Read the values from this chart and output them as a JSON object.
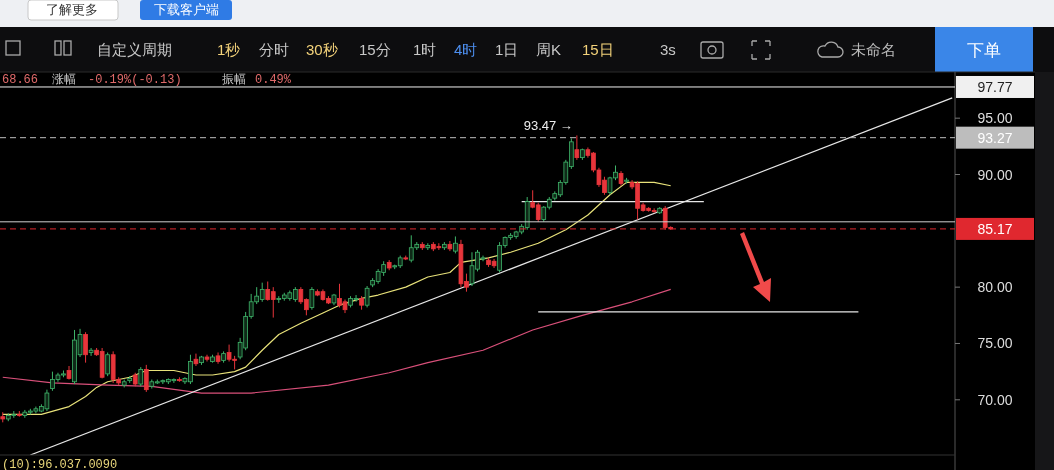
{
  "chart_data": {
    "type": "candlestick",
    "categories": [
      null,
      null,
      null,
      null,
      null,
      null,
      null,
      null,
      null,
      null,
      null,
      null,
      null,
      null,
      null,
      null,
      null,
      null,
      null,
      null,
      null,
      null,
      null,
      null,
      null,
      null,
      null,
      null,
      null,
      null,
      null,
      null,
      null,
      null,
      null,
      null,
      null,
      null,
      null,
      null,
      null,
      null,
      null,
      null,
      null,
      null,
      null,
      null,
      null,
      null,
      null,
      null,
      null,
      null,
      null,
      null,
      null,
      null,
      null,
      null,
      null,
      null,
      null,
      null,
      null,
      null,
      null,
      null,
      null,
      null,
      null,
      null,
      null,
      null,
      null,
      null,
      null,
      null,
      null,
      null,
      null,
      null,
      null,
      null,
      null,
      null,
      null,
      null,
      null,
      null,
      null,
      null,
      null,
      null,
      null,
      null,
      null,
      null,
      null,
      null,
      null,
      null,
      null,
      null,
      null,
      null,
      null,
      null,
      null,
      null,
      null,
      null,
      null,
      null,
      null,
      null,
      null,
      null,
      null,
      null,
      null,
      null,
      null,
      null,
      null,
      null,
      null,
      null,
      null,
      null,
      null,
      null,
      null,
      null,
      null,
      null,
      null,
      null,
      null,
      null,
      null,
      null,
      null,
      null,
      null,
      null,
      null,
      null,
      null,
      null,
      null,
      null,
      null,
      null,
      null,
      null,
      null,
      null,
      null,
      null,
      null,
      null,
      null,
      null,
      null,
      null,
      null,
      null,
      null,
      null,
      null,
      null,
      null
    ],
    "ohlc": [
      [
        68.5,
        68.9,
        68.0,
        68.3
      ],
      [
        68.3,
        68.8,
        68.1,
        68.6
      ],
      [
        68.6,
        69.0,
        68.4,
        68.7
      ],
      [
        68.7,
        69.0,
        68.5,
        68.6
      ],
      [
        68.6,
        69.1,
        68.4,
        68.9
      ],
      [
        68.9,
        69.2,
        68.7,
        69.0
      ],
      [
        69.0,
        69.4,
        68.8,
        69.2
      ],
      [
        69.0,
        69.6,
        68.9,
        69.4
      ],
      [
        69.2,
        70.9,
        69.0,
        70.6
      ],
      [
        71.0,
        72.5,
        70.8,
        71.8
      ],
      [
        71.8,
        72.4,
        71.6,
        72.2
      ],
      [
        72.2,
        72.6,
        72.0,
        72.3
      ],
      [
        72.6,
        73.0,
        71.8,
        71.9
      ],
      [
        71.6,
        76.2,
        71.4,
        75.3
      ],
      [
        74.0,
        76.3,
        73.8,
        75.8
      ],
      [
        75.8,
        76.0,
        73.3,
        74.0
      ],
      [
        74.2,
        74.6,
        73.9,
        74.4
      ],
      [
        74.4,
        74.6,
        73.9,
        74.0
      ],
      [
        74.3,
        74.6,
        71.9,
        72.0
      ],
      [
        72.3,
        74.2,
        72.1,
        74.0
      ],
      [
        74.0,
        74.3,
        71.5,
        71.8
      ],
      [
        71.8,
        72.0,
        71.3,
        71.5
      ],
      [
        71.3,
        71.8,
        71.1,
        71.6
      ],
      [
        71.7,
        72.1,
        71.5,
        71.9
      ],
      [
        72.2,
        72.4,
        71.2,
        71.4
      ],
      [
        71.4,
        72.9,
        71.2,
        72.7
      ],
      [
        72.7,
        73.1,
        70.7,
        70.9
      ],
      [
        71.2,
        71.8,
        71.0,
        71.6
      ],
      [
        71.5,
        71.8,
        71.4,
        71.6
      ],
      [
        71.6,
        71.8,
        71.4,
        71.7
      ],
      [
        71.6,
        71.9,
        71.4,
        71.8
      ],
      [
        71.7,
        71.9,
        71.5,
        71.8
      ],
      [
        71.8,
        72.0,
        71.6,
        71.7
      ],
      [
        71.6,
        72.0,
        71.4,
        71.9
      ],
      [
        71.6,
        74.0,
        71.4,
        73.4
      ],
      [
        73.6,
        74.1,
        73.0,
        73.2
      ],
      [
        73.3,
        73.9,
        73.1,
        73.8
      ],
      [
        73.8,
        74.0,
        73.4,
        73.6
      ],
      [
        73.4,
        74.0,
        73.3,
        73.8
      ],
      [
        73.9,
        74.2,
        73.2,
        73.4
      ],
      [
        73.5,
        74.3,
        73.3,
        74.1
      ],
      [
        74.2,
        74.9,
        73.4,
        73.6
      ],
      [
        73.6,
        73.9,
        72.7,
        73.5
      ],
      [
        73.8,
        75.5,
        73.6,
        75.1
      ],
      [
        74.6,
        77.8,
        74.4,
        77.4
      ],
      [
        77.4,
        79.4,
        77.2,
        78.7
      ],
      [
        78.7,
        80.0,
        78.5,
        79.2
      ],
      [
        78.9,
        80.4,
        78.7,
        79.8
      ],
      [
        79.8,
        80.5,
        78.8,
        78.9
      ],
      [
        79.6,
        80.0,
        77.3,
        78.9
      ],
      [
        78.9,
        79.2,
        78.6,
        79.0
      ],
      [
        79.0,
        79.5,
        78.8,
        79.3
      ],
      [
        79.0,
        79.7,
        78.8,
        79.5
      ],
      [
        78.9,
        80.0,
        78.7,
        79.8
      ],
      [
        79.8,
        80.0,
        78.5,
        78.7
      ],
      [
        78.9,
        79.0,
        77.5,
        78.0
      ],
      [
        78.2,
        80.0,
        78.0,
        79.8
      ],
      [
        79.6,
        79.8,
        79.2,
        79.3
      ],
      [
        79.6,
        79.8,
        78.8,
        78.9
      ],
      [
        79.0,
        79.2,
        78.5,
        78.6
      ],
      [
        78.6,
        79.4,
        78.4,
        79.3
      ],
      [
        79.0,
        80.3,
        78.2,
        78.4
      ],
      [
        78.7,
        78.9,
        77.7,
        78.0
      ],
      [
        78.4,
        79.2,
        78.2,
        79.0
      ],
      [
        78.9,
        79.3,
        78.7,
        79.0
      ],
      [
        79.0,
        79.2,
        78.0,
        78.4
      ],
      [
        78.4,
        80.1,
        78.2,
        79.9
      ],
      [
        80.2,
        80.8,
        80.0,
        80.6
      ],
      [
        80.5,
        81.6,
        80.3,
        81.4
      ],
      [
        81.3,
        82.3,
        81.0,
        82.0
      ],
      [
        82.2,
        82.4,
        81.5,
        81.7
      ],
      [
        81.8,
        82.0,
        81.6,
        81.9
      ],
      [
        81.9,
        82.8,
        81.7,
        82.6
      ],
      [
        82.6,
        82.8,
        82.4,
        82.5
      ],
      [
        82.4,
        84.6,
        82.2,
        83.5
      ],
      [
        83.5,
        84.0,
        83.3,
        83.8
      ],
      [
        83.8,
        84.0,
        83.3,
        83.5
      ],
      [
        83.5,
        83.9,
        83.3,
        83.7
      ],
      [
        83.8,
        84.0,
        83.2,
        83.4
      ],
      [
        83.6,
        83.9,
        83.3,
        83.5
      ],
      [
        83.5,
        84.0,
        83.3,
        83.8
      ],
      [
        83.8,
        84.1,
        83.2,
        83.4
      ],
      [
        83.2,
        84.5,
        83.0,
        83.9
      ],
      [
        83.8,
        84.2,
        80.0,
        80.3
      ],
      [
        80.5,
        81.2,
        79.6,
        80.0
      ],
      [
        80.3,
        83.1,
        80.1,
        81.9
      ],
      [
        81.6,
        83.3,
        81.4,
        83.1
      ],
      [
        82.5,
        82.8,
        82.3,
        82.6
      ],
      [
        82.4,
        82.6,
        81.8,
        82.0
      ],
      [
        82.3,
        82.5,
        81.7,
        81.9
      ],
      [
        81.5,
        84.0,
        81.3,
        83.7
      ],
      [
        83.7,
        84.5,
        83.5,
        84.4
      ],
      [
        84.4,
        84.8,
        84.2,
        84.6
      ],
      [
        84.5,
        85.0,
        84.3,
        84.9
      ],
      [
        84.9,
        85.6,
        84.7,
        85.4
      ],
      [
        85.3,
        88.0,
        85.1,
        87.6
      ],
      [
        87.5,
        88.6,
        87.0,
        87.1
      ],
      [
        87.3,
        87.5,
        85.8,
        86.0
      ],
      [
        86.0,
        87.2,
        85.8,
        87.1
      ],
      [
        87.1,
        88.0,
        86.9,
        87.8
      ],
      [
        87.9,
        88.5,
        87.7,
        88.3
      ],
      [
        88.2,
        89.5,
        88.0,
        89.3
      ],
      [
        89.3,
        91.3,
        89.1,
        91.1
      ],
      [
        90.7,
        93.2,
        90.5,
        92.9
      ],
      [
        92.2,
        93.47,
        91.3,
        91.5
      ],
      [
        91.5,
        92.3,
        91.3,
        92.2
      ],
      [
        92.2,
        92.4,
        91.5,
        91.7
      ],
      [
        91.9,
        92.0,
        90.2,
        90.4
      ],
      [
        90.4,
        90.6,
        88.9,
        89.1
      ],
      [
        89.5,
        89.8,
        88.2,
        88.4
      ],
      [
        88.4,
        89.8,
        88.2,
        89.7
      ],
      [
        89.7,
        90.8,
        89.5,
        90.2
      ],
      [
        90.1,
        90.3,
        89.0,
        89.2
      ],
      [
        89.4,
        89.7,
        89.2,
        89.5
      ],
      [
        89.3,
        89.5,
        88.7,
        88.9
      ],
      [
        89.2,
        89.4,
        86.0,
        87.0
      ],
      [
        87.3,
        87.5,
        86.7,
        86.8
      ],
      [
        87.0,
        87.1,
        86.7,
        86.8
      ],
      [
        86.8,
        87.0,
        86.6,
        86.7
      ],
      [
        86.6,
        87.1,
        86.5,
        87.0
      ],
      [
        87.0,
        87.2,
        85.1,
        85.3
      ],
      [
        85.3,
        85.4,
        85.1,
        85.17
      ],
      null,
      null,
      null,
      null,
      null,
      null,
      null,
      null,
      null,
      null,
      null,
      null,
      null,
      null,
      null,
      null,
      null,
      null,
      null,
      null,
      null,
      null,
      null,
      null,
      null,
      null,
      null,
      null,
      null,
      null,
      null,
      null,
      null,
      null,
      null,
      null,
      null,
      null,
      null,
      null,
      null,
      null,
      null,
      null,
      null,
      null,
      null,
      null,
      null,
      null,
      null
    ],
    "series": [
      {
        "type": "line",
        "color": "#e8e27a",
        "values": [
          68.7,
          null,
          null,
          null,
          null,
          null,
          null,
          68.7,
          null,
          null,
          null,
          null,
          69.4,
          null,
          null,
          70.3,
          null,
          71.1,
          null,
          71.6,
          null,
          null,
          null,
          72.0,
          null,
          null,
          72.6,
          null,
          null,
          null,
          null,
          72.6,
          null,
          null,
          null,
          72.2,
          null,
          null,
          72.2,
          null,
          null,
          null,
          72.5,
          null,
          72.9,
          null,
          null,
          74.4,
          null,
          null,
          75.8,
          null,
          null,
          null,
          76.8,
          null,
          null,
          null,
          77.7,
          null,
          null,
          78.4,
          null,
          null,
          null,
          79.0,
          null,
          null,
          79.3,
          null,
          null,
          null,
          null,
          80.0,
          null,
          null,
          null,
          80.9,
          null,
          null,
          null,
          81.3,
          null,
          82.2,
          null,
          null,
          null,
          null,
          82.6,
          null,
          null,
          null,
          83.1,
          null,
          null,
          null,
          null,
          83.9,
          null,
          null,
          null,
          null,
          85.1,
          null,
          null,
          null,
          86.4,
          null,
          null,
          null,
          88.2,
          null,
          null,
          89.3,
          null,
          null,
          null,
          null,
          89.3,
          null,
          null,
          89.0,
          null,
          null,
          null,
          null,
          null,
          null,
          null,
          null,
          null,
          null,
          null,
          null,
          null,
          null,
          null,
          null,
          null,
          null,
          null,
          null,
          null,
          null,
          null,
          null,
          null,
          null,
          null,
          null,
          null,
          null,
          null,
          null,
          null,
          null,
          null,
          null,
          null,
          null,
          null,
          null,
          null,
          null,
          null,
          null,
          null,
          null,
          null,
          null,
          null,
          null,
          null
        ]
      },
      {
        "type": "line",
        "color": "#d9507a",
        "values": [
          72.0,
          null,
          null,
          null,
          null,
          null,
          null,
          null,
          null,
          71.5,
          null,
          null,
          null,
          null,
          null,
          null,
          null,
          null,
          null,
          71.3,
          null,
          null,
          null,
          null,
          null,
          null,
          null,
          71.2,
          null,
          null,
          null,
          null,
          null,
          null,
          null,
          null,
          70.6,
          null,
          null,
          null,
          null,
          null,
          null,
          null,
          null,
          70.6,
          null,
          null,
          null,
          null,
          null,
          null,
          null,
          null,
          null,
          null,
          null,
          null,
          null,
          71.3,
          null,
          null,
          null,
          null,
          null,
          null,
          null,
          null,
          null,
          null,
          72.4,
          null,
          null,
          null,
          null,
          null,
          null,
          73.3,
          null,
          null,
          null,
          null,
          null,
          null,
          null,
          null,
          null,
          74.4,
          null,
          null,
          null,
          null,
          null,
          null,
          null,
          null,
          76.2,
          null,
          null,
          null,
          null,
          null,
          null,
          null,
          null,
          77.5,
          null,
          null,
          null,
          null,
          null,
          null,
          null,
          null,
          78.7,
          null,
          null,
          null,
          null,
          null,
          null,
          79.8,
          null,
          null,
          null,
          null,
          null,
          null,
          null,
          null,
          null,
          null,
          null,
          null,
          null,
          null,
          null,
          null,
          null,
          null,
          null,
          null,
          null,
          null,
          null,
          null,
          null,
          null,
          null,
          null,
          null,
          null,
          null,
          null,
          null,
          null,
          null,
          null,
          null,
          null,
          null,
          null,
          null,
          null,
          null,
          null,
          null,
          null,
          null,
          null,
          null,
          null,
          null
        ]
      },
      {
        "type": "line",
        "color": "#e6e6e6",
        "values": [
          null,
          null,
          null,
          null,
          null,
          65.1,
          null,
          null,
          null,
          null,
          null,
          null,
          null,
          null,
          null,
          null,
          null,
          null,
          null,
          null,
          null,
          null,
          null,
          null,
          null,
          null,
          null,
          null,
          null,
          null,
          null,
          null,
          null,
          null,
          null,
          null,
          null,
          null,
          null,
          null,
          null,
          null,
          null,
          null,
          null,
          null,
          null,
          null,
          null,
          null,
          null,
          null,
          null,
          null,
          null,
          null,
          null,
          null,
          null,
          null,
          null,
          null,
          null,
          null,
          null,
          null,
          null,
          null,
          null,
          null,
          null,
          null,
          null,
          null,
          null,
          null,
          null,
          null,
          null,
          null,
          null,
          null,
          null,
          null,
          null,
          null,
          null,
          null,
          null,
          null,
          null,
          null,
          null,
          null,
          null,
          null,
          null,
          null,
          null,
          null,
          null,
          null,
          null,
          null,
          null,
          null,
          null,
          null,
          null,
          null,
          null,
          null,
          null,
          null,
          null,
          null,
          null,
          null,
          null,
          null,
          null,
          null,
          null,
          null,
          null,
          null,
          null,
          null,
          null,
          null,
          null,
          null,
          null,
          null,
          null,
          null,
          null,
          null,
          null,
          null,
          null,
          null,
          null,
          null,
          null,
          null,
          null,
          null,
          null,
          null,
          null,
          null,
          null,
          null,
          null,
          null,
          null,
          null,
          null,
          null,
          null,
          null,
          null,
          null,
          null,
          null,
          null,
          null,
          null,
          null,
          null,
          null,
          96.8
        ]
      },
      {
        "type": "line",
        "color": "#e6e6e6",
        "values": [
          null,
          null,
          null,
          null,
          null,
          null,
          null,
          null,
          null,
          null,
          null,
          null,
          null,
          null,
          null,
          null,
          null,
          null,
          null,
          null,
          null,
          null,
          null,
          null,
          null,
          null,
          null,
          null,
          null,
          null,
          null,
          null,
          null,
          null,
          null,
          null,
          null,
          null,
          null,
          null,
          null,
          null,
          null,
          null,
          null,
          null,
          null,
          null,
          null,
          null,
          null,
          null,
          null,
          null,
          null,
          null,
          null,
          null,
          null,
          null,
          null,
          null,
          null,
          null,
          null,
          null,
          null,
          null,
          null,
          null,
          null,
          null,
          null,
          null,
          null,
          null,
          null,
          null,
          null,
          null,
          null,
          null,
          null,
          null,
          null,
          null,
          null,
          null,
          null,
          null,
          null,
          null,
          null,
          null,
          87.6,
          null,
          null,
          null,
          null,
          null,
          null,
          null,
          null,
          null,
          null,
          null,
          null,
          null,
          null,
          null,
          null,
          null,
          null,
          null,
          null,
          null,
          null,
          null,
          null,
          null,
          null,
          null,
          null,
          null,
          null,
          null,
          null,
          87.6,
          null,
          null,
          null,
          null,
          null,
          null,
          null,
          null,
          null,
          null,
          null,
          null,
          null,
          null,
          null,
          null,
          null,
          null,
          null,
          null,
          null,
          null,
          null,
          null,
          null,
          null,
          null,
          null,
          null,
          null,
          null,
          null,
          null,
          null,
          null,
          null,
          null,
          null,
          null,
          null,
          null,
          null,
          null,
          null,
          null
        ]
      },
      {
        "type": "line",
        "color": "#e6e6e6",
        "values": [
          null,
          null,
          null,
          null,
          null,
          null,
          null,
          null,
          null,
          null,
          null,
          null,
          null,
          null,
          null,
          null,
          null,
          null,
          null,
          null,
          null,
          null,
          null,
          null,
          null,
          null,
          null,
          null,
          null,
          null,
          null,
          null,
          null,
          null,
          null,
          null,
          null,
          null,
          null,
          null,
          null,
          null,
          null,
          null,
          null,
          null,
          null,
          null,
          null,
          null,
          null,
          null,
          null,
          null,
          null,
          null,
          null,
          null,
          null,
          null,
          null,
          null,
          null,
          null,
          null,
          null,
          null,
          null,
          null,
          null,
          null,
          null,
          null,
          null,
          null,
          null,
          null,
          null,
          null,
          null,
          null,
          null,
          null,
          null,
          null,
          null,
          null,
          null,
          null,
          null,
          null,
          null,
          null,
          null,
          null,
          null,
          null,
          77.8,
          null,
          null,
          null,
          null,
          null,
          null,
          null,
          null,
          null,
          null,
          null,
          null,
          null,
          null,
          null,
          null,
          null,
          null,
          null,
          null,
          null,
          null,
          null,
          null,
          null,
          null,
          null,
          null,
          null,
          null,
          null,
          null,
          null,
          null,
          null,
          null,
          null,
          null,
          null,
          null,
          null,
          null,
          null,
          null,
          null,
          null,
          null,
          null,
          null,
          null,
          null,
          null,
          null,
          null,
          null,
          null,
          null,
          77.8,
          null,
          null,
          null,
          null,
          null,
          null,
          null,
          null,
          null,
          null,
          null,
          null,
          null,
          null,
          null,
          null,
          null
        ]
      }
    ],
    "ylim": [
      65.1,
      99.1
    ],
    "yticks": [
      {
        "value": 70,
        "label": "70.00"
      },
      {
        "value": 75,
        "label": "75.00"
      },
      {
        "value": 80,
        "label": "80.00"
      },
      {
        "value": 90,
        "label": "90.00"
      },
      {
        "value": 95,
        "label": "95.00"
      }
    ],
    "tick_labels": "y",
    "grid": false,
    "ref_lines": [
      {
        "axis": "y",
        "value": 97.77,
        "label": "97.77",
        "color": "#f0f0f0",
        "line_style": "solid"
      },
      {
        "axis": "y",
        "value": 93.27,
        "label": "93.27",
        "color": "#bdbdbd",
        "line_style": "dashed"
      },
      {
        "axis": "y",
        "value": 85.8,
        "label": null,
        "color": "#d0d0d0",
        "line_style": "solid"
      },
      {
        "axis": "y",
        "value": 85.17,
        "label": "85.17",
        "color": "#e0282f",
        "line_style": "dashed"
      }
    ],
    "annotations": [
      "了解更多",
      "下载客户端",
      "自定义周期",
      "1秒",
      "分时",
      "30秒",
      "15分",
      "1时",
      "4时",
      "1日",
      "周K",
      "15日",
      "3s",
      "未命名",
      "下单",
      "68.66",
      "涨幅",
      "-0.19%(-0.13)",
      "振幅",
      "0.49%",
      "(10):96.037.0090",
      {
        "text": "93.47 →",
        "y": 93.47
      }
    ]
  }
}
